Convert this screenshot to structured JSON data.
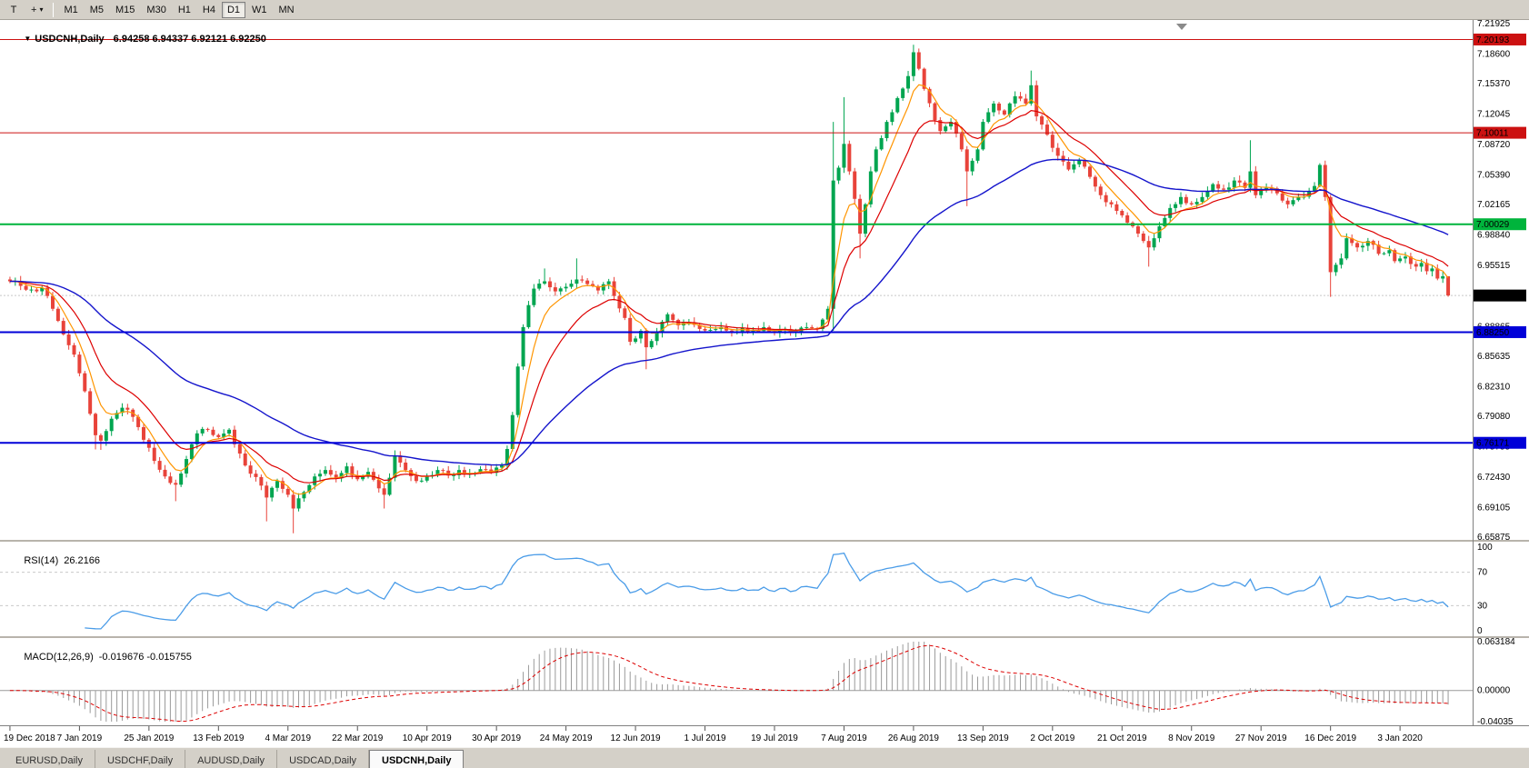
{
  "toolbar": {
    "tool_text": "T",
    "cursor_glyph": "+",
    "caret": "▾",
    "timeframes": [
      "M1",
      "M5",
      "M15",
      "M30",
      "H1",
      "H4",
      "D1",
      "W1",
      "MN"
    ],
    "active_timeframe": "D1"
  },
  "chart": {
    "collapse_icon": "▼",
    "title_symbol": "USDCNH,Daily",
    "title_ohlc": "6.94258 6.94337 6.92121 6.92250"
  },
  "rsi": {
    "title": "RSI(14)",
    "value": "26.2166",
    "axis_labels": [
      "100",
      "70",
      "30",
      "0"
    ],
    "levels": [
      70,
      30
    ]
  },
  "macd": {
    "title": "MACD(12,26,9)",
    "value": "-0.019676 -0.015755",
    "axis_labels": [
      "0.063184",
      "0.00000",
      "-0.04035"
    ]
  },
  "tabs": [
    {
      "label": "EURUSD,Daily",
      "active": false
    },
    {
      "label": "USDCHF,Daily",
      "active": false
    },
    {
      "label": "AUDUSD,Daily",
      "active": false
    },
    {
      "label": "USDCAD,Daily",
      "active": false
    },
    {
      "label": "USDCNH,Daily",
      "active": true
    }
  ],
  "chart_data": {
    "type": "candlestick",
    "symbol": "USDCNH",
    "period": "Daily",
    "bars_total": 270,
    "first_open": 6.94,
    "current_bar": {
      "open": 6.94258,
      "high": 6.94337,
      "low": 6.92121,
      "close": 6.9225
    },
    "y_axis": {
      "min": 6.65875,
      "max": 7.21925,
      "tick_labels": [
        "7.21925",
        "7.18600",
        "7.15370",
        "7.12045",
        "7.08720",
        "7.05390",
        "7.02165",
        "6.98840",
        "6.95515",
        "6.92190",
        "6.88865",
        "6.85635",
        "6.82310",
        "6.79080",
        "6.75755",
        "6.72430",
        "6.69105",
        "6.65875"
      ]
    },
    "x_ticks": {
      "labels": [
        "19 Dec 2018",
        "7 Jan 2019",
        "25 Jan 2019",
        "13 Feb 2019",
        "4 Mar 2019",
        "22 Mar 2019",
        "10 Apr 2019",
        "30 Apr 2019",
        "24 May 2019",
        "12 Jun 2019",
        "1 Jul 2019",
        "19 Jul 2019",
        "7 Aug 2019",
        "26 Aug 2019",
        "13 Sep 2019",
        "2 Oct 2019",
        "21 Oct 2019",
        "8 Nov 2019",
        "27 Nov 2019",
        "16 Dec 2019",
        "3 Jan 2020"
      ],
      "bar_indices": [
        0,
        13,
        26,
        39,
        52,
        65,
        78,
        91,
        104,
        117,
        130,
        143,
        156,
        169,
        182,
        195,
        208,
        221,
        234,
        247,
        260
      ]
    },
    "h_lines": [
      {
        "price": 7.20193,
        "label": "7.20193",
        "color": "#cc1111",
        "width": 1
      },
      {
        "price": 7.10011,
        "label": "7.10011",
        "color": "#cc1111",
        "width": 1
      },
      {
        "price": 7.00029,
        "label": "7.00029",
        "color": "#00b43c",
        "width": 2
      },
      {
        "price": 6.8825,
        "label": "6.88250",
        "color": "#0000d8",
        "width": 2
      },
      {
        "price": 6.76171,
        "label": "6.76171",
        "color": "#0000d8",
        "width": 2
      }
    ],
    "price_line": {
      "price": 6.9225,
      "label": "6.92250",
      "box_color": "#000000"
    },
    "colors": {
      "up": "#00a550",
      "down": "#e8433a",
      "ma_fast": "#ff9500",
      "ma_mid": "#dd0000",
      "ma_slow": "#1414cc",
      "rsi_line": "#4a9ce8",
      "macd_bars": "#9a9a9a",
      "macd_signal": "#dd0000"
    },
    "ma_periods": {
      "fast": 6,
      "mid": 14,
      "slow": 48
    },
    "anchors": [
      [
        0,
        6.938
      ],
      [
        2,
        6.933
      ],
      [
        4,
        6.929
      ],
      [
        6,
        6.931
      ],
      [
        8,
        6.908
      ],
      [
        10,
        6.88
      ],
      [
        12,
        6.858
      ],
      [
        14,
        6.818
      ],
      [
        16,
        6.77
      ],
      [
        17,
        6.764
      ],
      [
        19,
        6.788
      ],
      [
        21,
        6.8
      ],
      [
        23,
        6.79
      ],
      [
        25,
        6.765
      ],
      [
        27,
        6.742
      ],
      [
        29,
        6.725
      ],
      [
        31,
        6.716
      ],
      [
        33,
        6.744
      ],
      [
        35,
        6.772
      ],
      [
        37,
        6.776
      ],
      [
        39,
        6.768
      ],
      [
        41,
        6.776
      ],
      [
        43,
        6.75
      ],
      [
        45,
        6.728
      ],
      [
        47,
        6.715
      ],
      [
        48,
        6.702
      ],
      [
        50,
        6.72
      ],
      [
        52,
        6.705
      ],
      [
        53,
        6.69
      ],
      [
        55,
        6.708
      ],
      [
        57,
        6.725
      ],
      [
        59,
        6.732
      ],
      [
        61,
        6.723
      ],
      [
        63,
        6.736
      ],
      [
        65,
        6.722
      ],
      [
        67,
        6.73
      ],
      [
        69,
        6.712
      ],
      [
        70,
        6.705
      ],
      [
        72,
        6.748
      ],
      [
        74,
        6.732
      ],
      [
        76,
        6.72
      ],
      [
        78,
        6.725
      ],
      [
        80,
        6.732
      ],
      [
        82,
        6.726
      ],
      [
        84,
        6.732
      ],
      [
        86,
        6.728
      ],
      [
        88,
        6.733
      ],
      [
        90,
        6.729
      ],
      [
        92,
        6.737
      ],
      [
        93,
        6.755
      ],
      [
        94,
        6.792
      ],
      [
        95,
        6.845
      ],
      [
        96,
        6.888
      ],
      [
        97,
        6.912
      ],
      [
        98,
        6.93
      ],
      [
        100,
        6.938
      ],
      [
        102,
        6.927
      ],
      [
        104,
        6.932
      ],
      [
        106,
        6.94
      ],
      [
        108,
        6.935
      ],
      [
        110,
        6.928
      ],
      [
        112,
        6.938
      ],
      [
        113,
        6.922
      ],
      [
        115,
        6.898
      ],
      [
        116,
        6.872
      ],
      [
        118,
        6.884
      ],
      [
        119,
        6.866
      ],
      [
        121,
        6.882
      ],
      [
        123,
        6.902
      ],
      [
        125,
        6.89
      ],
      [
        127,
        6.893
      ],
      [
        129,
        6.886
      ],
      [
        131,
        6.885
      ],
      [
        133,
        6.888
      ],
      [
        135,
        6.883
      ],
      [
        137,
        6.887
      ],
      [
        139,
        6.884
      ],
      [
        141,
        6.888
      ],
      [
        143,
        6.882
      ],
      [
        145,
        6.886
      ],
      [
        147,
        6.883
      ],
      [
        149,
        6.888
      ],
      [
        151,
        6.886
      ],
      [
        153,
        6.908
      ],
      [
        154,
        7.048
      ],
      [
        155,
        7.062
      ],
      [
        156,
        7.088
      ],
      [
        157,
        7.058
      ],
      [
        158,
        7.028
      ],
      [
        159,
        6.99
      ],
      [
        160,
        7.022
      ],
      [
        161,
        7.058
      ],
      [
        162,
        7.082
      ],
      [
        164,
        7.112
      ],
      [
        166,
        7.138
      ],
      [
        168,
        7.162
      ],
      [
        169,
        7.188
      ],
      [
        170,
        7.17
      ],
      [
        171,
        7.148
      ],
      [
        173,
        7.114
      ],
      [
        174,
        7.102
      ],
      [
        176,
        7.112
      ],
      [
        178,
        7.082
      ],
      [
        179,
        7.058
      ],
      [
        181,
        7.082
      ],
      [
        182,
        7.112
      ],
      [
        184,
        7.132
      ],
      [
        186,
        7.12
      ],
      [
        188,
        7.14
      ],
      [
        190,
        7.132
      ],
      [
        191,
        7.152
      ],
      [
        192,
        7.118
      ],
      [
        194,
        7.098
      ],
      [
        196,
        7.075
      ],
      [
        198,
        7.06
      ],
      [
        200,
        7.07
      ],
      [
        202,
        7.052
      ],
      [
        204,
        7.032
      ],
      [
        206,
        7.022
      ],
      [
        208,
        7.01
      ],
      [
        210,
        6.998
      ],
      [
        212,
        6.982
      ],
      [
        213,
        6.975
      ],
      [
        215,
        6.998
      ],
      [
        217,
        7.018
      ],
      [
        219,
        7.03
      ],
      [
        221,
        7.022
      ],
      [
        223,
        7.03
      ],
      [
        225,
        7.044
      ],
      [
        227,
        7.038
      ],
      [
        229,
        7.048
      ],
      [
        231,
        7.04
      ],
      [
        232,
        7.058
      ],
      [
        233,
        7.032
      ],
      [
        235,
        7.04
      ],
      [
        237,
        7.034
      ],
      [
        239,
        7.022
      ],
      [
        241,
        7.03
      ],
      [
        243,
        7.036
      ],
      [
        244,
        7.042
      ],
      [
        245,
        7.065
      ],
      [
        246,
        7.03
      ],
      [
        247,
        6.948
      ],
      [
        248,
        6.956
      ],
      [
        249,
        6.963
      ],
      [
        250,
        6.985
      ],
      [
        252,
        6.975
      ],
      [
        254,
        6.982
      ],
      [
        256,
        6.968
      ],
      [
        258,
        6.972
      ],
      [
        259,
        6.96
      ],
      [
        261,
        6.965
      ],
      [
        263,
        6.954
      ],
      [
        264,
        6.958
      ],
      [
        265,
        6.949
      ],
      [
        266,
        6.952
      ],
      [
        267,
        6.941
      ],
      [
        268,
        6.9435
      ],
      [
        269,
        6.9225
      ]
    ],
    "wick_overrides": {
      "16": {
        "l": 6.7545
      },
      "17": {
        "l": 6.754
      },
      "31": {
        "l": 6.698
      },
      "48": {
        "l": 6.676
      },
      "53": {
        "l": 6.663
      },
      "70": {
        "l": 6.69
      },
      "100": {
        "h": 6.952
      },
      "106": {
        "h": 6.963
      },
      "119": {
        "l": 6.842
      },
      "154": {
        "h": 7.112,
        "l": 6.884
      },
      "156": {
        "h": 7.139
      },
      "159": {
        "l": 6.963
      },
      "169": {
        "h": 7.1962
      },
      "179": {
        "l": 7.02
      },
      "191": {
        "h": 7.168
      },
      "213": {
        "l": 6.954
      },
      "232": {
        "h": 7.092
      },
      "247": {
        "l": 6.921
      },
      "269": {
        "h": 6.9434,
        "l": 6.9212
      }
    }
  }
}
